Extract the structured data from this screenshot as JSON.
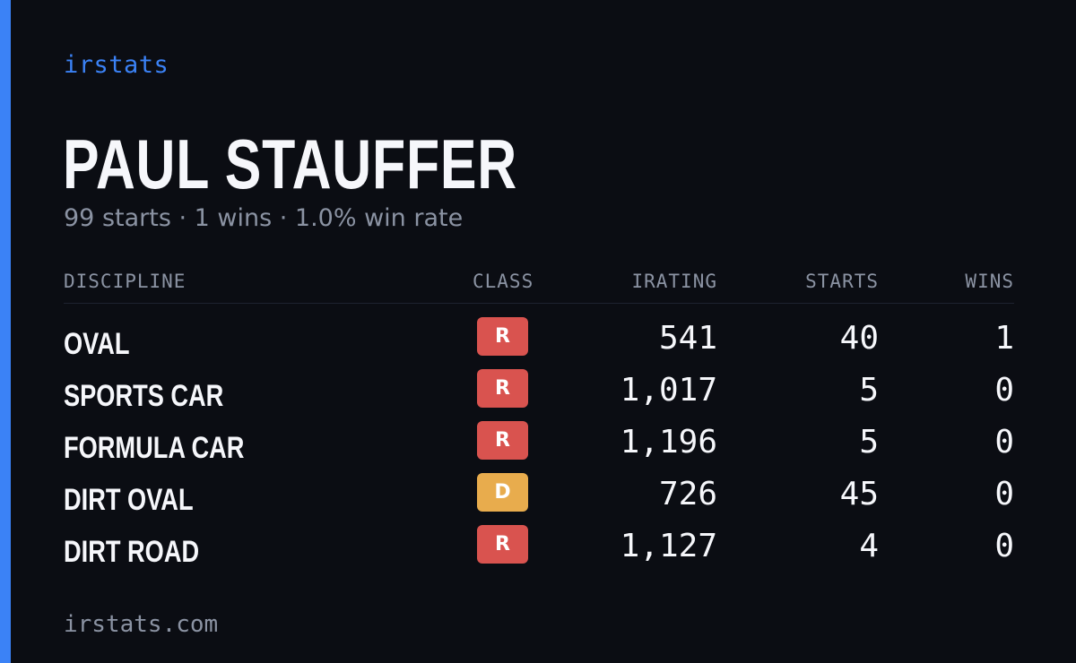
{
  "brand": "irstats",
  "player": {
    "name": "PAUL STAUFFER",
    "summary": "99 starts · 1 wins · 1.0% win rate"
  },
  "table": {
    "headers": {
      "discipline": "DISCIPLINE",
      "class": "CLASS",
      "irating": "IRATING",
      "starts": "STARTS",
      "wins": "WINS"
    },
    "rows": [
      {
        "discipline": "OVAL",
        "class": "R",
        "class_color": "#d9534f",
        "irating": "541",
        "starts": "40",
        "wins": "1"
      },
      {
        "discipline": "SPORTS CAR",
        "class": "R",
        "class_color": "#d9534f",
        "irating": "1,017",
        "starts": "5",
        "wins": "0"
      },
      {
        "discipline": "FORMULA CAR",
        "class": "R",
        "class_color": "#d9534f",
        "irating": "1,196",
        "starts": "5",
        "wins": "0"
      },
      {
        "discipline": "DIRT OVAL",
        "class": "D",
        "class_color": "#e8ac4d",
        "irating": "726",
        "starts": "45",
        "wins": "0"
      },
      {
        "discipline": "DIRT ROAD",
        "class": "R",
        "class_color": "#d9534f",
        "irating": "1,127",
        "starts": "4",
        "wins": "0"
      }
    ]
  },
  "footer": "irstats.com",
  "colors": {
    "accent": "#3b82f6",
    "background": "#0b0d13"
  }
}
